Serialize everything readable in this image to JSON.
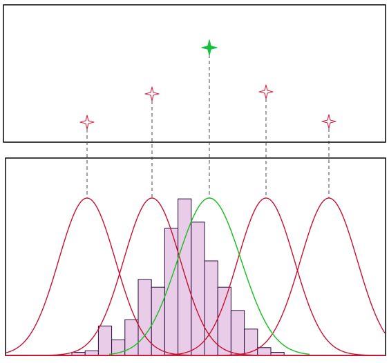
{
  "diagram": {
    "description_text": "",
    "colors": {
      "background": "#ffffff",
      "frame": "#000000",
      "curve_red": "#c8102e",
      "curve_green": "#1fbf2a",
      "marker_red": "#d62040",
      "marker_green": "#19c040",
      "histogram_fill": "#e8cce8",
      "histogram_edge": "#2a0a3a",
      "connector": "#333333"
    },
    "markers": [
      {
        "id": "marker-1",
        "color": "red",
        "icon": "four-point-star-outline"
      },
      {
        "id": "marker-2",
        "color": "red",
        "icon": "four-point-star-outline"
      },
      {
        "id": "marker-3",
        "color": "green",
        "icon": "four-point-star-filled"
      },
      {
        "id": "marker-4",
        "color": "red",
        "icon": "four-point-star-outline"
      },
      {
        "id": "marker-5",
        "color": "red",
        "icon": "four-point-star-outline"
      }
    ],
    "gaussian_curves": [
      {
        "id": "red-curve-1",
        "color": "red"
      },
      {
        "id": "red-curve-2",
        "color": "red"
      },
      {
        "id": "green-curve",
        "color": "green"
      },
      {
        "id": "red-curve-4",
        "color": "red"
      },
      {
        "id": "red-curve-5",
        "color": "red"
      }
    ],
    "histogram_relative_heights": [
      0.02,
      0.03,
      0.19,
      0.1,
      0.23,
      0.49,
      0.44,
      0.82,
      1.01,
      0.86,
      0.61,
      0.44,
      0.29,
      0.17,
      0.05,
      0.02
    ]
  }
}
